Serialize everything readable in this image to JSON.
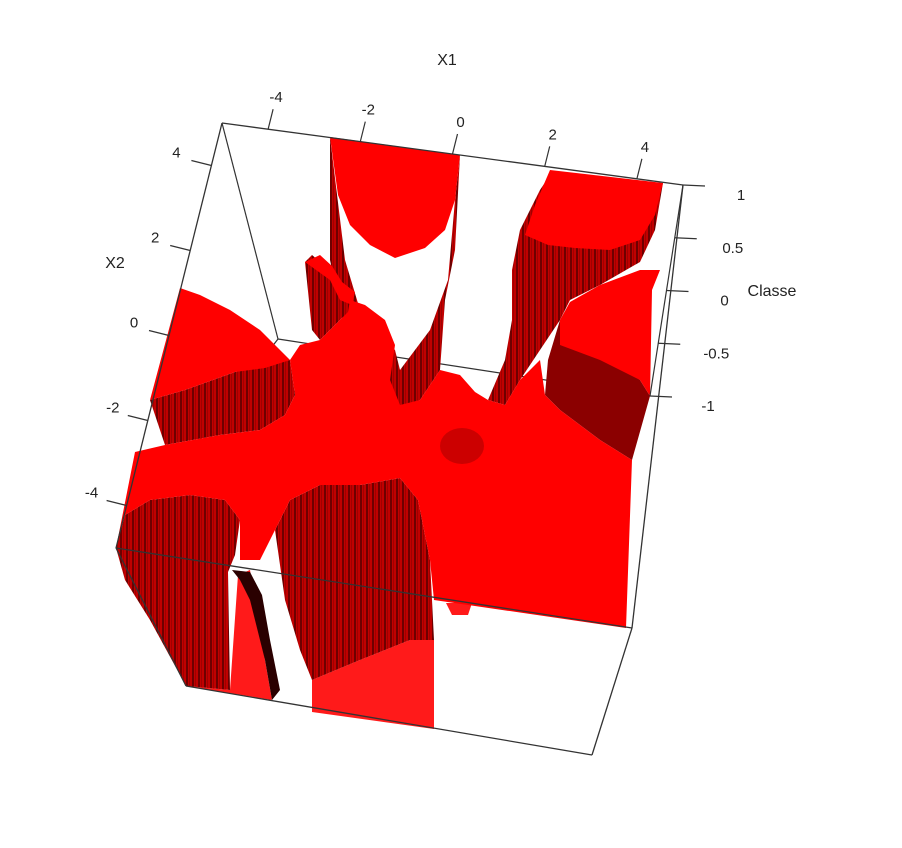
{
  "chart_data": {
    "type": "surface-3d",
    "title": "",
    "x_axis": {
      "label": "X1",
      "ticks": [
        -4,
        -2,
        0,
        2,
        4
      ],
      "range": [
        -5,
        5
      ]
    },
    "y_axis": {
      "label": "X2",
      "ticks": [
        -4,
        -2,
        0,
        2,
        4
      ],
      "range": [
        -5,
        5
      ]
    },
    "z_axis": {
      "label": "Classe",
      "ticks": [
        -1,
        -0.5,
        0,
        0.5,
        1
      ],
      "range": [
        -1,
        1
      ]
    },
    "z_levels": [
      -1,
      1
    ],
    "surface_color": "#ff0000",
    "wall_color": "#990000",
    "box_color": "#333333",
    "regions_at_z_plus_1": [
      {
        "name": "top-center-lobe",
        "x1": [
          -2.3,
          0.2
        ],
        "x2": [
          1.5,
          4.6
        ]
      },
      {
        "name": "top-right-lobe",
        "x1": [
          1.2,
          5.0
        ],
        "x2": [
          0.0,
          4.6
        ]
      },
      {
        "name": "right-lobe",
        "x1": [
          2.0,
          5.0
        ],
        "x2": [
          -2.5,
          0.5
        ]
      },
      {
        "name": "left-lobe",
        "x1": [
          -5.0,
          -3.0
        ],
        "x2": [
          -2.5,
          0.5
        ]
      },
      {
        "name": "inner-spur",
        "x1": [
          -3.2,
          -1.8
        ],
        "x2": [
          -0.5,
          2.2
        ]
      },
      {
        "name": "bottom-left-lobe",
        "x1": [
          -5.0,
          -3.0
        ],
        "x2": [
          -5.0,
          -2.2
        ]
      },
      {
        "name": "bottom-center-lobe",
        "x1": [
          -2.5,
          0.2
        ],
        "x2": [
          -5.0,
          -1.5
        ]
      }
    ],
    "regions_at_z_minus_1": [
      {
        "name": "center-hole",
        "x1": [
          -0.2,
          0.8
        ],
        "x2": [
          -1.3,
          -0.3
        ]
      }
    ]
  }
}
